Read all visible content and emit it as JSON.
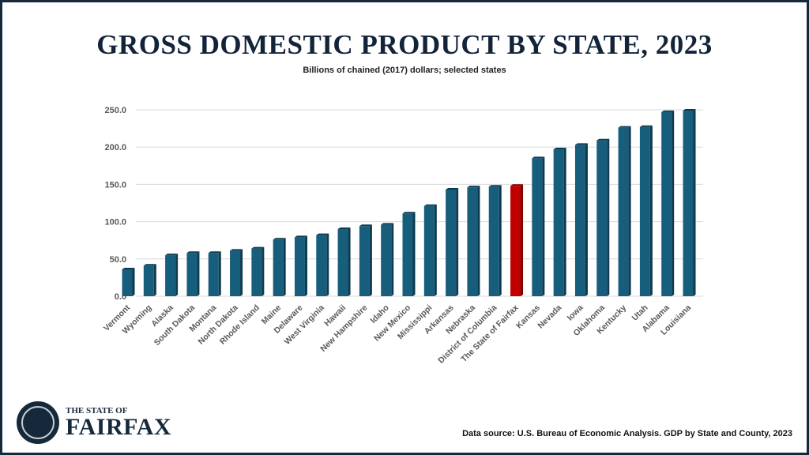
{
  "chart_data": {
    "type": "bar",
    "title": "GROSS DOMESTIC PRODUCT BY STATE, 2023",
    "subtitle": "Billions of chained (2017) dollars; selected states",
    "categories": [
      "Vermont",
      "Wyoming",
      "Alaska",
      "South Dakota",
      "Montana",
      "North Dakota",
      "Rhode Island",
      "Maine",
      "Delaware",
      "West Virginia",
      "Hawaii",
      "New Hampshire",
      "Idaho",
      "New Mexico",
      "Mississippi",
      "Arkansas",
      "Nebraska",
      "District of Columbia",
      "The State of Fairfax",
      "Kansas",
      "Nevada",
      "Iowa",
      "Oklahoma",
      "Kentucky",
      "Utah",
      "Alabama",
      "Louisiana"
    ],
    "values": [
      36,
      41,
      55,
      58,
      58,
      61,
      64,
      76,
      79,
      82,
      90,
      94,
      96,
      111,
      121,
      143,
      146,
      147,
      148,
      185,
      197,
      203,
      209,
      226,
      227,
      247,
      249
    ],
    "highlight": "The State of Fairfax",
    "ylim": [
      0,
      250
    ],
    "yticks": [
      "0.0",
      "50.0",
      "100.0",
      "150.0",
      "200.0",
      "250.0"
    ],
    "grid": true,
    "colors": {
      "bar": "#175d7c",
      "highlight": "#c00000",
      "title": "#13243a"
    }
  },
  "source": "Data source: U.S. Bureau of Economic Analysis. GDP by State and County, 2023",
  "logo": {
    "line1": "THE STATE OF",
    "line2": "FAIRFAX"
  }
}
